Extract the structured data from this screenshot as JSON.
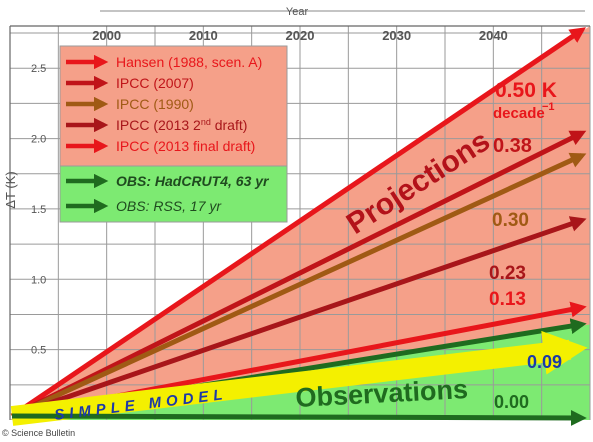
{
  "chart_data": {
    "type": "line",
    "xlabel": "Year",
    "ylabel": "ΔT (K)",
    "xlim": [
      1990,
      2050
    ],
    "ylim": [
      0,
      2.8
    ],
    "x_ticks": [
      "2000",
      "2010",
      "2020",
      "2030",
      "2040"
    ],
    "y_ticks": [
      "0.5",
      "1.0",
      "1.5",
      "2.0",
      "2.5"
    ],
    "legend": {
      "placement": "top-left",
      "projection_entries": [
        {
          "label": "Hansen (1988, scen. A)",
          "color": "#e8161b"
        },
        {
          "label": "IPCC (2007)",
          "color": "#c01419"
        },
        {
          "label": "IPCC (1990)",
          "color": "#a05a14"
        },
        {
          "label": "IPCC (2013 2",
          "sup": "nd",
          "label_rest": " draft)",
          "color": "#a8161a"
        },
        {
          "label": "IPCC (2013 final draft)",
          "color": "#e8161b"
        }
      ],
      "observation_entries": [
        {
          "label": "OBS: HadCRUT4, 63 yr",
          "color": "#1f6b1f",
          "bold": true
        },
        {
          "label": "OBS: RSS, 17 yr",
          "color": "#1f6b1f",
          "bold": false
        }
      ]
    },
    "series": [
      {
        "name": "Hansen (1988, scen. A)",
        "color": "#e8161b",
        "x": [
          1990,
          2050
        ],
        "y": [
          0,
          2.9
        ],
        "label": "0.50 K"
      },
      {
        "name": "IPCC (2007)",
        "color": "#c01419",
        "x": [
          1990,
          2050
        ],
        "y": [
          0,
          2.04
        ],
        "label": "0.38"
      },
      {
        "name": "IPCC (1990)",
        "color": "#a05a14",
        "x": [
          1990,
          2050
        ],
        "y": [
          0,
          1.88
        ],
        "label": "0.30"
      },
      {
        "name": "IPCC (2013 2nd draft)",
        "color": "#a8161a",
        "x": [
          1990,
          2050
        ],
        "y": [
          0,
          1.42
        ],
        "label": "0.23"
      },
      {
        "name": "IPCC (2013 final draft)",
        "color": "#e8161b",
        "x": [
          1990,
          2050
        ],
        "y": [
          0,
          0.8
        ],
        "label": "0.13"
      },
      {
        "name": "OBS: HadCRUT4, 63 yr",
        "color": "#1f6b1f",
        "x": [
          1990,
          2050
        ],
        "y": [
          0,
          0.68
        ]
      },
      {
        "name": "Simple model",
        "color": "#f4f000",
        "x": [
          1990,
          2050
        ],
        "y": [
          0,
          0.5
        ],
        "label": "0.09"
      },
      {
        "name": "OBS: RSS, 17 yr",
        "color": "#1f6b1f",
        "x": [
          1990,
          2050
        ],
        "y": [
          0,
          0.0
        ],
        "label": "0.00"
      }
    ],
    "annotations": {
      "projections": "Projections",
      "observations": "Observations",
      "simple_model": "SIMPLE MODEL",
      "unit_line2": "decade",
      "unit_sup": "−1"
    },
    "colors": {
      "projection_fill": "#f5a089",
      "observation_fill": "#7dea72",
      "grid": "#9a9a9a"
    }
  },
  "credit": "© Science Bulletin"
}
